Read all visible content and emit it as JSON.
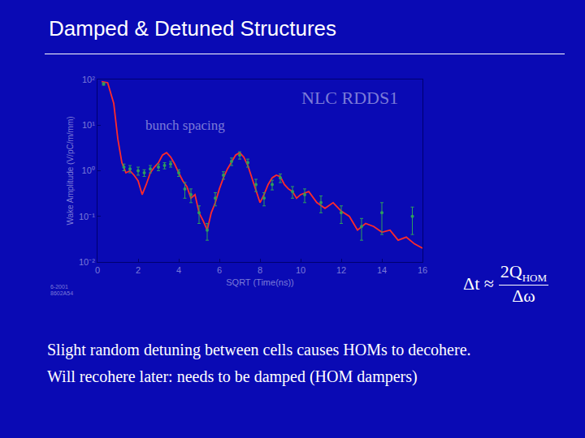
{
  "slide": {
    "title": "Damped & Detuned Structures",
    "stamp": [
      "6-2001",
      "8602A54"
    ],
    "formula": {
      "lhs": "Δt ≈",
      "numerator": "2Q",
      "numerator_sub": "HOM",
      "denominator": "Δω"
    },
    "notes": [
      "Slight random detuning between cells causes HOMs to decohere.",
      "Will recohere later: needs to be damped (HOM dampers)"
    ]
  },
  "chart_data": {
    "type": "line",
    "x_label": "SQRT (Time(ns))",
    "y_label": "Wake Amplitude (V/pC/m/mm)",
    "log": "y",
    "grid": false,
    "xlim": [
      0,
      16
    ],
    "xticks": [
      0,
      2,
      4,
      6,
      8,
      10,
      12,
      14,
      16
    ],
    "ylim": [
      0.01,
      100
    ],
    "yticks": [
      {
        "value": 100,
        "label": "10²"
      },
      {
        "value": 10,
        "label": "10¹"
      },
      {
        "value": 1,
        "label": "10⁰"
      },
      {
        "value": 0.1,
        "label": "10⁻¹"
      },
      {
        "value": 0.01,
        "label": "10⁻²"
      }
    ],
    "annotations": [
      {
        "text": "NLC RDDS1",
        "x": 12.4,
        "y": 40
      },
      {
        "text": "bunch spacing",
        "x": 4.3,
        "y": 10
      }
    ],
    "series": [
      {
        "type": "line",
        "color": "#ff2a2a",
        "line_style": "solid",
        "x": [
          0.2,
          0.5,
          0.8,
          1.0,
          1.2,
          1.4,
          1.6,
          1.8,
          2.0,
          2.2,
          2.4,
          2.6,
          2.8,
          3.0,
          3.2,
          3.4,
          3.6,
          3.8,
          4.0,
          4.2,
          4.4,
          4.6,
          4.8,
          5.0,
          5.2,
          5.4,
          5.6,
          5.8,
          6.0,
          6.2,
          6.4,
          6.6,
          6.8,
          7.0,
          7.2,
          7.4,
          7.6,
          7.8,
          8.0,
          8.2,
          8.4,
          8.6,
          8.8,
          9.0,
          9.2,
          9.4,
          9.6,
          9.8,
          10.0,
          10.4,
          10.8,
          11.2,
          11.6,
          12.0,
          12.4,
          12.8,
          13.2,
          13.6,
          14.0,
          14.4,
          14.8,
          15.2,
          15.6,
          16.0
        ],
        "values": [
          90,
          85,
          30,
          5,
          1.5,
          0.9,
          1.0,
          0.8,
          0.6,
          0.3,
          0.5,
          0.9,
          1.2,
          1.5,
          2.2,
          2.5,
          2.0,
          1.4,
          0.9,
          0.6,
          0.45,
          0.25,
          0.3,
          0.12,
          0.08,
          0.05,
          0.12,
          0.2,
          0.4,
          0.7,
          1.1,
          1.6,
          2.2,
          2.5,
          2.0,
          1.3,
          0.7,
          0.35,
          0.2,
          0.3,
          0.5,
          0.7,
          0.8,
          0.75,
          0.5,
          0.4,
          0.35,
          0.25,
          0.3,
          0.35,
          0.2,
          0.15,
          0.2,
          0.13,
          0.1,
          0.05,
          0.07,
          0.06,
          0.045,
          0.05,
          0.03,
          0.035,
          0.025,
          0.02
        ]
      },
      {
        "type": "scatter",
        "color": "#2e9e5e",
        "marker": "circle",
        "x": [
          0.3,
          1.3,
          1.6,
          2.0,
          2.3,
          2.6,
          3.0,
          3.3,
          3.6,
          4.0,
          4.3,
          4.6,
          5.0,
          5.4,
          5.8,
          6.2,
          6.6,
          7.0,
          7.4,
          7.8,
          8.2,
          8.6,
          9.0,
          9.6,
          10.2,
          11.0,
          12.0,
          13.0,
          14.0,
          15.5
        ],
        "values": [
          80,
          1.2,
          1.1,
          1.0,
          0.9,
          1.1,
          1.2,
          1.3,
          1.4,
          0.9,
          0.4,
          0.3,
          0.12,
          0.05,
          0.25,
          0.8,
          1.6,
          2.2,
          1.5,
          0.5,
          0.25,
          0.5,
          0.7,
          0.35,
          0.3,
          0.2,
          0.12,
          0.06,
          0.12,
          0.1
        ],
        "error": [
          5,
          0.2,
          0.2,
          0.2,
          0.15,
          0.2,
          0.2,
          0.2,
          0.2,
          0.15,
          0.15,
          0.1,
          0.05,
          0.02,
          0.08,
          0.15,
          0.3,
          0.4,
          0.3,
          0.15,
          0.08,
          0.12,
          0.15,
          0.1,
          0.1,
          0.08,
          0.05,
          0.03,
          0.08,
          0.06
        ]
      }
    ]
  }
}
